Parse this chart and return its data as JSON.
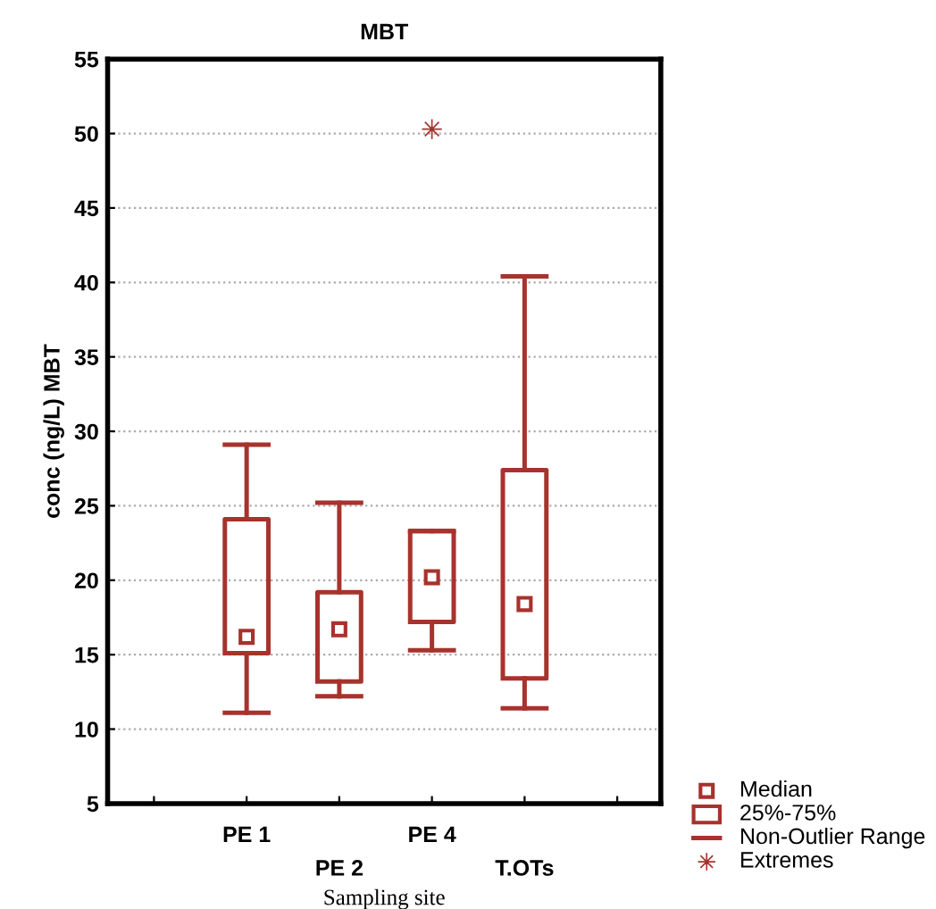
{
  "chart_data": {
    "type": "box",
    "title": "MBT",
    "xlabel": "Sampling site",
    "ylabel": "conc (ng/L) MBT",
    "categories": [
      "PE 1",
      "PE 2",
      "PE 4",
      "T.OTs"
    ],
    "color": "#a8322d",
    "boxes": [
      {
        "low": 11.1,
        "q1": 15.1,
        "median": 16.2,
        "q3": 24.1,
        "high": 29.1
      },
      {
        "low": 12.2,
        "q1": 13.2,
        "median": 16.7,
        "q3": 19.2,
        "high": 25.2
      },
      {
        "low": 15.3,
        "q1": 17.2,
        "median": 20.2,
        "q3": 23.3,
        "high": 23.3,
        "outliers": [
          50.3
        ]
      },
      {
        "low": 11.4,
        "q1": 13.4,
        "median": 18.4,
        "q3": 27.4,
        "high": 40.4
      }
    ],
    "ylim": [
      5,
      55
    ],
    "yticks": [
      5,
      10,
      15,
      20,
      25,
      30,
      35,
      40,
      45,
      50,
      55
    ],
    "grid": "y",
    "annotations": [
      "Median",
      "25%-75%",
      "Non-Outlier Range",
      "Extremes"
    ]
  }
}
